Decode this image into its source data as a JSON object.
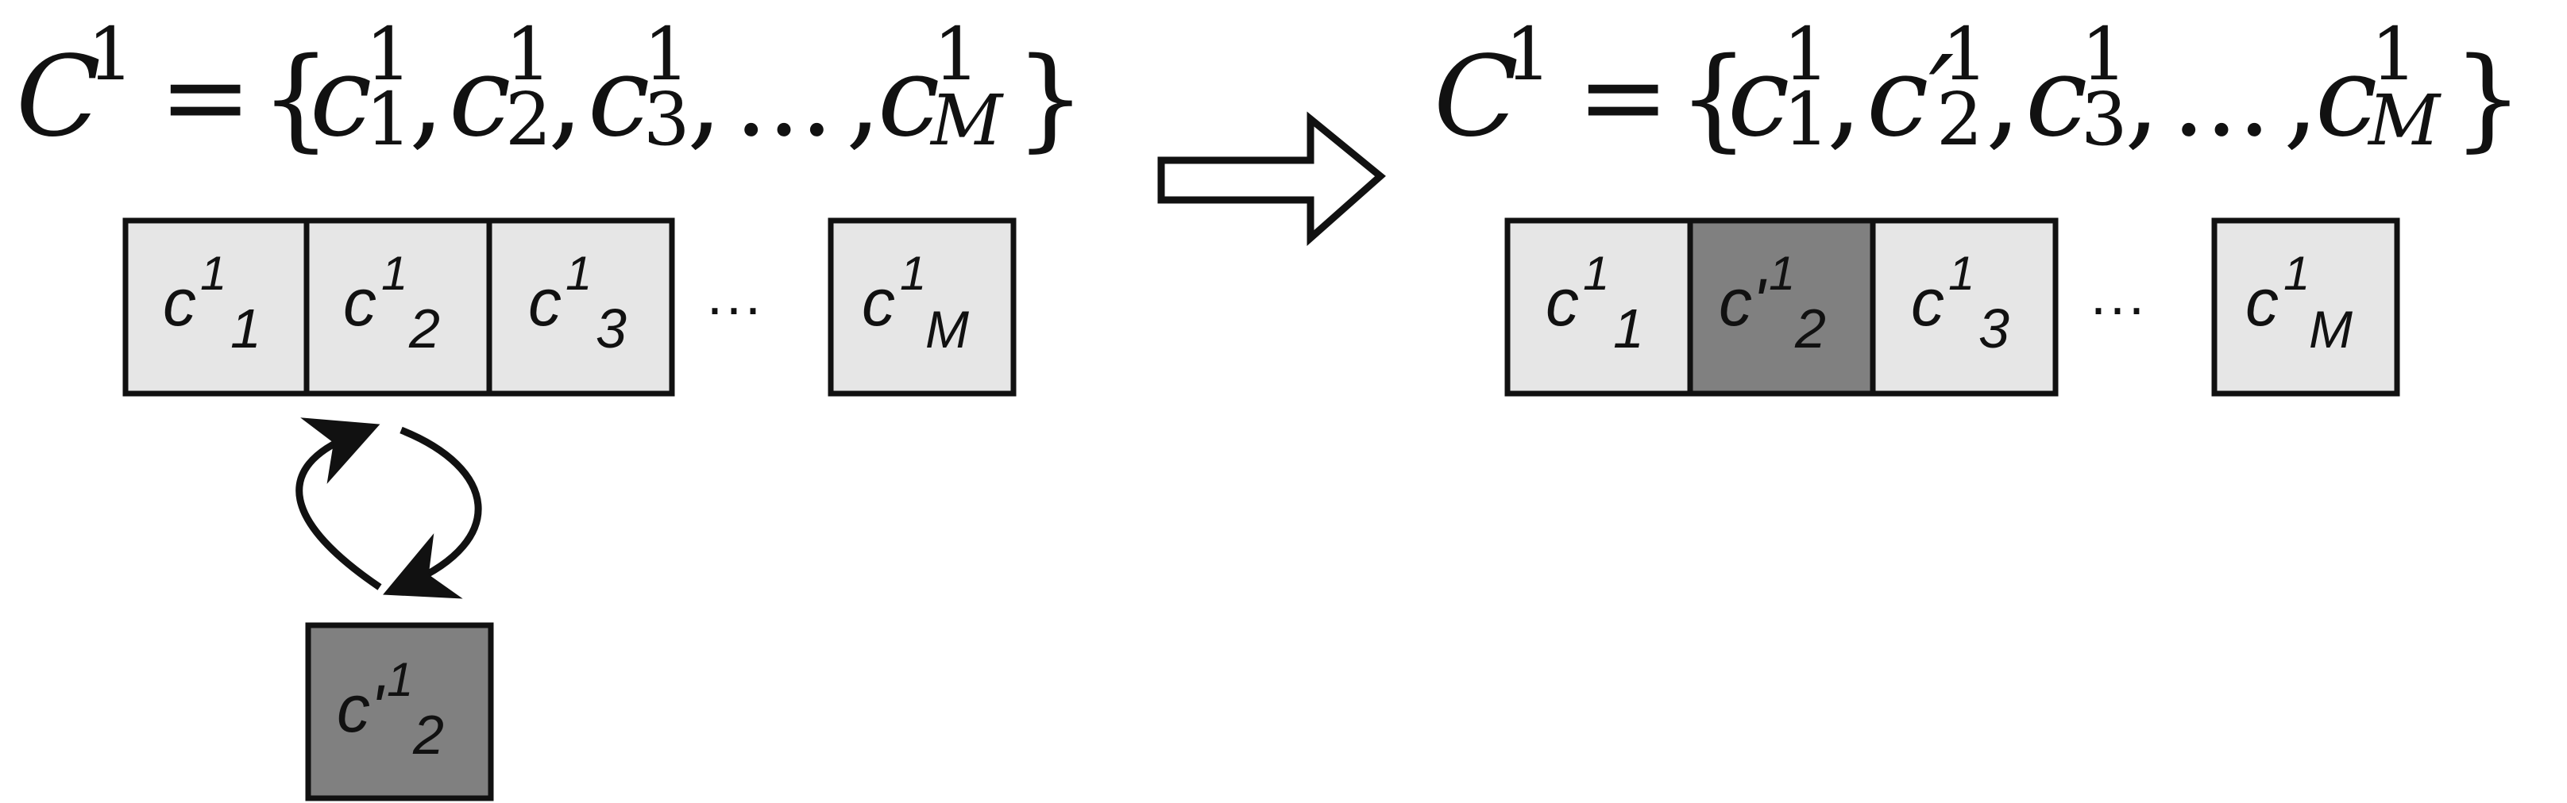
{
  "left": {
    "formula": {
      "lhs": "C",
      "lhs_sup": "1",
      "equals": "=",
      "open": "{",
      "close": "}",
      "items": [
        {
          "base": "c",
          "sup": "1",
          "sub": "1"
        },
        {
          "base": "c",
          "sup": "1",
          "sub": "2"
        },
        {
          "base": "c",
          "sup": "1",
          "sub": "3"
        },
        {
          "base": "c",
          "sup": "1",
          "sub": "M"
        }
      ],
      "ellipsis": "...",
      "separator": ","
    },
    "cells": [
      {
        "base": "c",
        "sup": "1",
        "sub": "1",
        "fill": "#e6e6e6"
      },
      {
        "base": "c",
        "sup": "1",
        "sub": "2",
        "fill": "#e6e6e6"
      },
      {
        "base": "c",
        "sup": "1",
        "sub": "3",
        "fill": "#e6e6e6"
      },
      {
        "base": "c",
        "sup": "1",
        "sub": "M",
        "fill": "#e6e6e6"
      }
    ],
    "cells_ellipsis": "···",
    "swap_cell": {
      "base": "c'",
      "sup": "1",
      "sub": "2",
      "fill": "#808080"
    }
  },
  "right": {
    "formula": {
      "lhs": "C",
      "lhs_sup": "1",
      "equals": "=",
      "open": "{",
      "close": "}",
      "items": [
        {
          "base": "c",
          "sup": "1",
          "sub": "1"
        },
        {
          "base": "c′",
          "sup": "1",
          "sub": "2"
        },
        {
          "base": "c",
          "sup": "1",
          "sub": "3"
        },
        {
          "base": "c",
          "sup": "1",
          "sub": "M"
        }
      ],
      "ellipsis": "...",
      "separator": ","
    },
    "cells": [
      {
        "base": "c",
        "sup": "1",
        "sub": "1",
        "fill": "#e6e6e6"
      },
      {
        "base": "c'",
        "sup": "1",
        "sub": "2",
        "fill": "#808080"
      },
      {
        "base": "c",
        "sup": "1",
        "sub": "3",
        "fill": "#e6e6e6"
      },
      {
        "base": "c",
        "sup": "1",
        "sub": "M",
        "fill": "#e6e6e6"
      }
    ],
    "cells_ellipsis": "···"
  },
  "colors": {
    "light_cell": "#e6e6e6",
    "dark_cell": "#808080",
    "stroke": "#111111"
  }
}
